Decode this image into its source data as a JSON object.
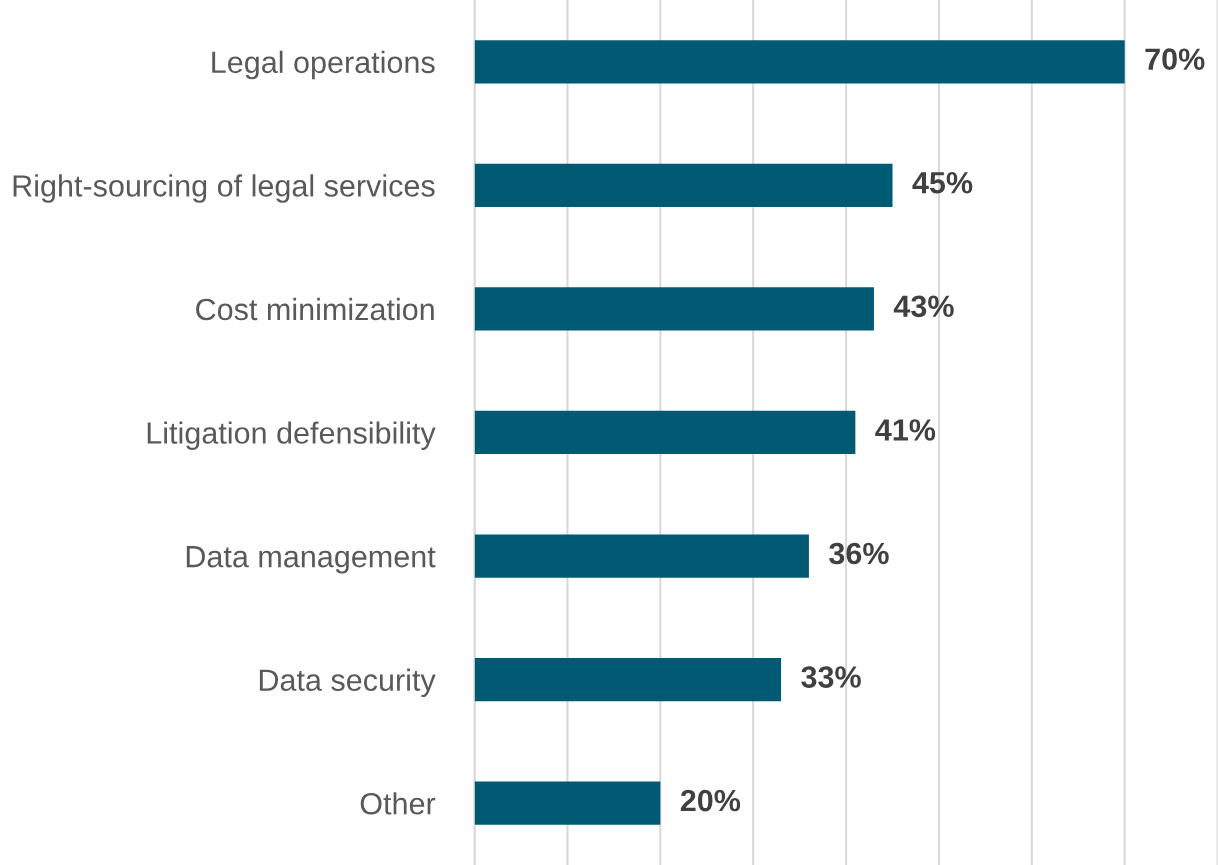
{
  "chart_data": {
    "type": "bar",
    "orientation": "horizontal",
    "categories": [
      "Legal operations",
      "Right-sourcing of legal services",
      "Cost minimization",
      "Litigation defensibility",
      "Data management",
      "Data security",
      "Other"
    ],
    "values": [
      70,
      45,
      43,
      41,
      36,
      33,
      20
    ],
    "value_labels": [
      "70%",
      "45%",
      "43%",
      "41%",
      "36%",
      "33%",
      "20%"
    ],
    "color": "#005a73",
    "xlim": [
      0,
      80
    ],
    "xticks": [
      {
        "value": 0,
        "label": null
      },
      {
        "value": 10,
        "label": null
      },
      {
        "value": 20,
        "label": null
      },
      {
        "value": 30,
        "label": null
      },
      {
        "value": 40,
        "label": null
      },
      {
        "value": 50,
        "label": null
      },
      {
        "value": 60,
        "label": null
      },
      {
        "value": 70,
        "label": null
      },
      {
        "value": 80,
        "label": null
      }
    ],
    "tick_labels": "y",
    "grid": "x",
    "legend": false
  }
}
